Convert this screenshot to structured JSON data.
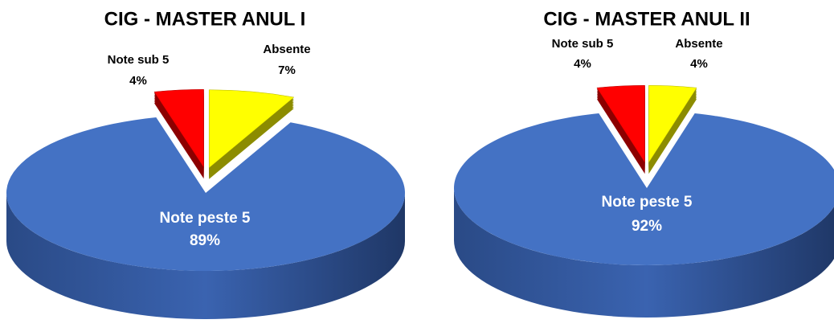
{
  "chart_data": [
    {
      "type": "pie",
      "title": "CIG - MASTER ANUL I",
      "categories": [
        "Note peste 5",
        "Note sub 5",
        "Absente"
      ],
      "values": [
        89,
        4,
        7
      ],
      "value_labels": [
        "89%",
        "4%",
        "7%"
      ],
      "colors": [
        "#4472c4",
        "#ff0000",
        "#ffff00"
      ]
    },
    {
      "type": "pie",
      "title": "CIG - MASTER ANUL II",
      "categories": [
        "Note peste 5",
        "Note sub 5",
        "Absente"
      ],
      "values": [
        92,
        4,
        4
      ],
      "value_labels": [
        "92%",
        "4%",
        "4%"
      ],
      "colors": [
        "#4472c4",
        "#ff0000",
        "#ffff00"
      ]
    }
  ]
}
